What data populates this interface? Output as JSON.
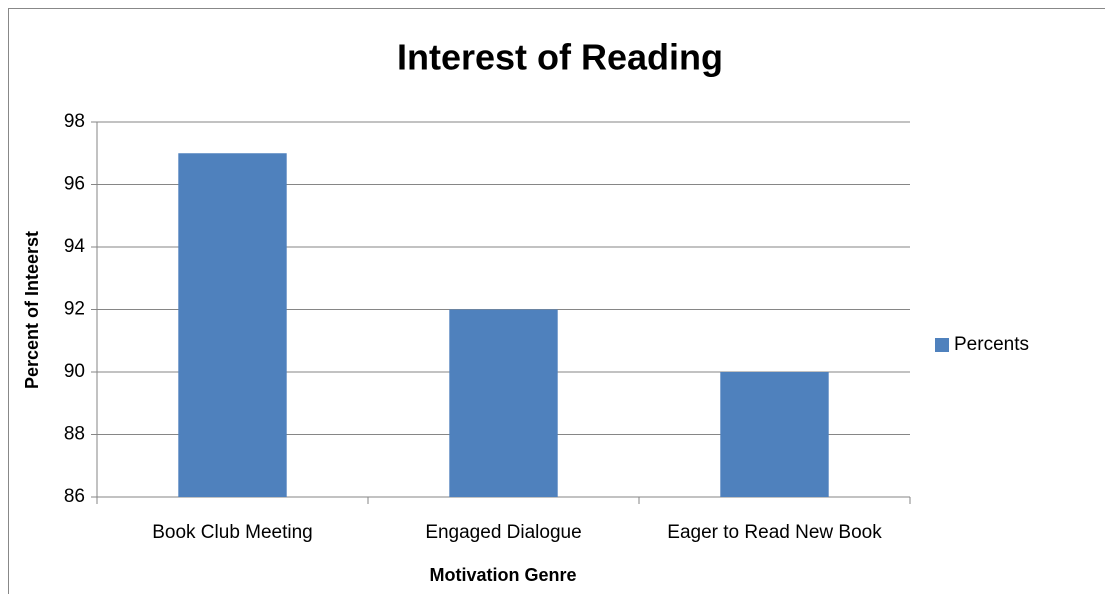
{
  "chart_data": {
    "type": "bar",
    "title": "Interest of Reading",
    "x_label": "Motivation Genre",
    "y_label": "Percent of Inteerst",
    "categories": [
      "Book Club Meeting",
      "Engaged Dialogue",
      "Eager to Read New Book"
    ],
    "series": [
      {
        "name": "Percents",
        "color": "#4f81bd",
        "values": [
          97,
          92,
          90
        ]
      }
    ],
    "ylim": [
      86,
      98
    ],
    "yticks": [
      86,
      88,
      90,
      92,
      94,
      96,
      98
    ],
    "grid": true,
    "legend": "right"
  }
}
